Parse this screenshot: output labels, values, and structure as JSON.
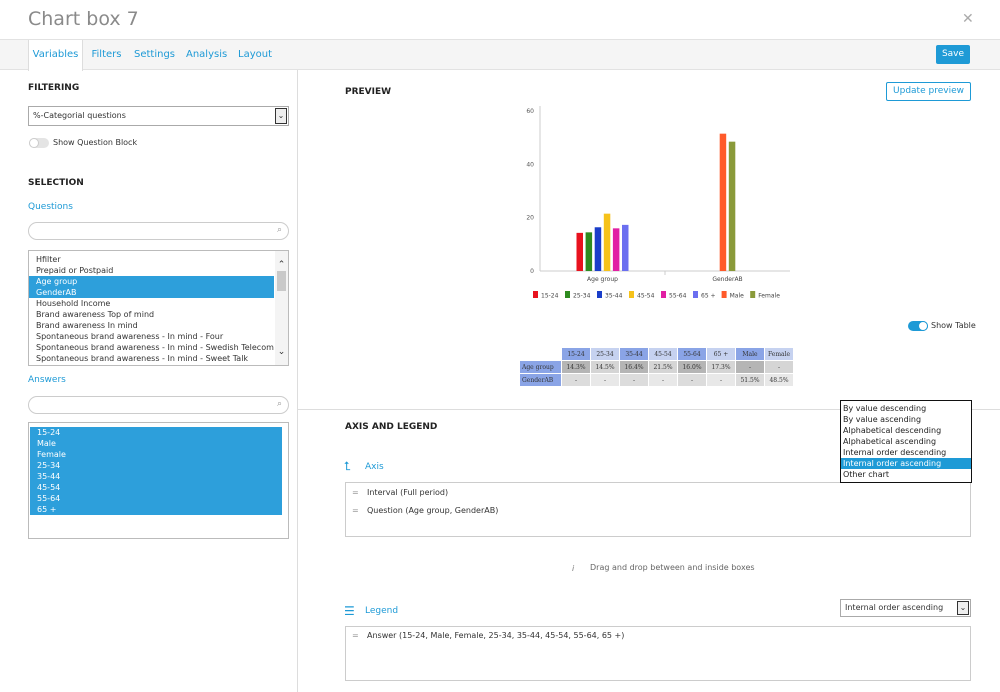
{
  "title": "Chart box 7",
  "tabs": [
    "Variables",
    "Filters",
    "Settings",
    "Analysis",
    "Layout"
  ],
  "save_label": "Save",
  "left": {
    "filtering_heading": "FILTERING",
    "filter_select": "%-Categorial questions",
    "show_question_block": "Show Question Block",
    "selection_heading": "SELECTION",
    "questions_label": "Questions",
    "questions": [
      {
        "label": "Hfilter",
        "selected": false
      },
      {
        "label": "Prepaid or Postpaid",
        "selected": false
      },
      {
        "label": "Age group",
        "selected": true
      },
      {
        "label": "GenderAB",
        "selected": true
      },
      {
        "label": "Household Income",
        "selected": false
      },
      {
        "label": "Brand awareness Top of mind",
        "selected": false
      },
      {
        "label": "Brand awareness In mind",
        "selected": false
      },
      {
        "label": "Spontaneous brand awareness - In mind - Four",
        "selected": false
      },
      {
        "label": "Spontaneous brand awareness - In mind - Swedish Telecom",
        "selected": false
      },
      {
        "label": "Spontaneous brand awareness - In mind - Sweet Talk",
        "selected": false
      }
    ],
    "answers_label": "Answers",
    "answers": [
      "15-24",
      "Male",
      "Female",
      "25-34",
      "35-44",
      "45-54",
      "55-64",
      "65 +"
    ]
  },
  "right": {
    "preview_heading": "PREVIEW",
    "update_preview": "Update preview",
    "show_table": "Show Table",
    "axis_legend_heading": "AXIS AND LEGEND",
    "axis_label": "Axis",
    "axis_rows": [
      "Interval (Full period)",
      "Question (Age group, GenderAB)"
    ],
    "drag_hint": "Drag and drop between and inside boxes",
    "legend_label": "Legend",
    "legend_rows": [
      "Answer (15-24, Male, Female, 25-34, 35-44, 45-54, 55-64, 65 +)"
    ],
    "legend_sort_value": "Internal order ascending",
    "sort_options": [
      "By value descending",
      "By value ascending",
      "Alphabetical descending",
      "Alphabetical ascending",
      "Internal order descending",
      "Internal order ascending",
      "Other chart"
    ],
    "sort_highlighted": "Internal order ascending"
  },
  "chart_data": {
    "type": "bar",
    "categories": [
      "Age group",
      "GenderAB"
    ],
    "ylim": [
      0,
      60
    ],
    "yticks": [
      0,
      20,
      40,
      60
    ],
    "series": [
      {
        "name": "15-24",
        "color": "#e8121e",
        "values": [
          14.3,
          null
        ]
      },
      {
        "name": "25-34",
        "color": "#2e8b1f",
        "values": [
          14.5,
          null
        ]
      },
      {
        "name": "35-44",
        "color": "#1a3ec9",
        "values": [
          16.4,
          null
        ]
      },
      {
        "name": "45-54",
        "color": "#f6c21a",
        "values": [
          21.5,
          null
        ]
      },
      {
        "name": "55-64",
        "color": "#e11fa3",
        "values": [
          16.0,
          null
        ]
      },
      {
        "name": "65 +",
        "color": "#6b6ff0",
        "values": [
          17.3,
          null
        ]
      },
      {
        "name": "Male",
        "color": "#ff5a2a",
        "values": [
          null,
          51.5
        ]
      },
      {
        "name": "Female",
        "color": "#8a9a3a",
        "values": [
          null,
          48.5
        ]
      }
    ]
  },
  "data_table": {
    "headers": [
      "15-24",
      "25-34",
      "35-44",
      "45-54",
      "55-64",
      "65 +",
      "Male",
      "Female"
    ],
    "rows": [
      {
        "label": "Age group",
        "cells": [
          "14.3%",
          "14.5%",
          "16.4%",
          "21.5%",
          "16.0%",
          "17.3%",
          "-",
          "-"
        ]
      },
      {
        "label": "GenderAB",
        "cells": [
          "-",
          "-",
          "-",
          "-",
          "-",
          "-",
          "51.5%",
          "48.5%"
        ]
      }
    ]
  }
}
